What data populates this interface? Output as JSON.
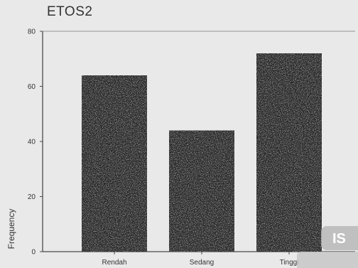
{
  "chart_data": {
    "type": "bar",
    "title": "ETOS2",
    "ylabel": "Frequency",
    "xlabel": "",
    "categories": [
      "Rendah",
      "Sedang",
      "Tinggi"
    ],
    "values": [
      64,
      44,
      72
    ],
    "ylim": [
      0,
      80
    ],
    "yticks": [
      0,
      20,
      40,
      60,
      80
    ],
    "grid": false,
    "bar_color": "#2c2c2c",
    "background": "#e9e9e9"
  },
  "watermark": {
    "text": "IS"
  }
}
